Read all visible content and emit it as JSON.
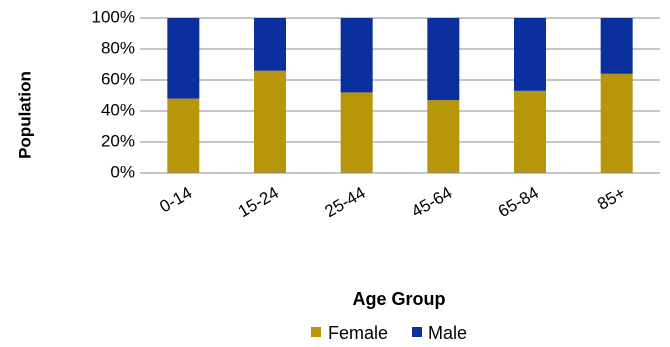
{
  "chart_data": {
    "type": "bar",
    "stacked": true,
    "percent_stacked": true,
    "categories": [
      "0-14",
      "15-24",
      "25-44",
      "45-64",
      "65-84",
      "85+"
    ],
    "series": [
      {
        "name": "Female",
        "color": "#B8960C",
        "values": [
          48,
          66,
          52,
          47,
          53,
          64
        ]
      },
      {
        "name": "Male",
        "color": "#0C2F9E",
        "values": [
          52,
          34,
          48,
          53,
          47,
          36
        ]
      }
    ],
    "ylim": [
      0,
      100
    ],
    "yticks": [
      "0%",
      "20%",
      "40%",
      "60%",
      "80%",
      "100%"
    ],
    "ylabel": "Population",
    "xlabel": "Age Group",
    "grid": true,
    "legend_position": "bottom"
  }
}
